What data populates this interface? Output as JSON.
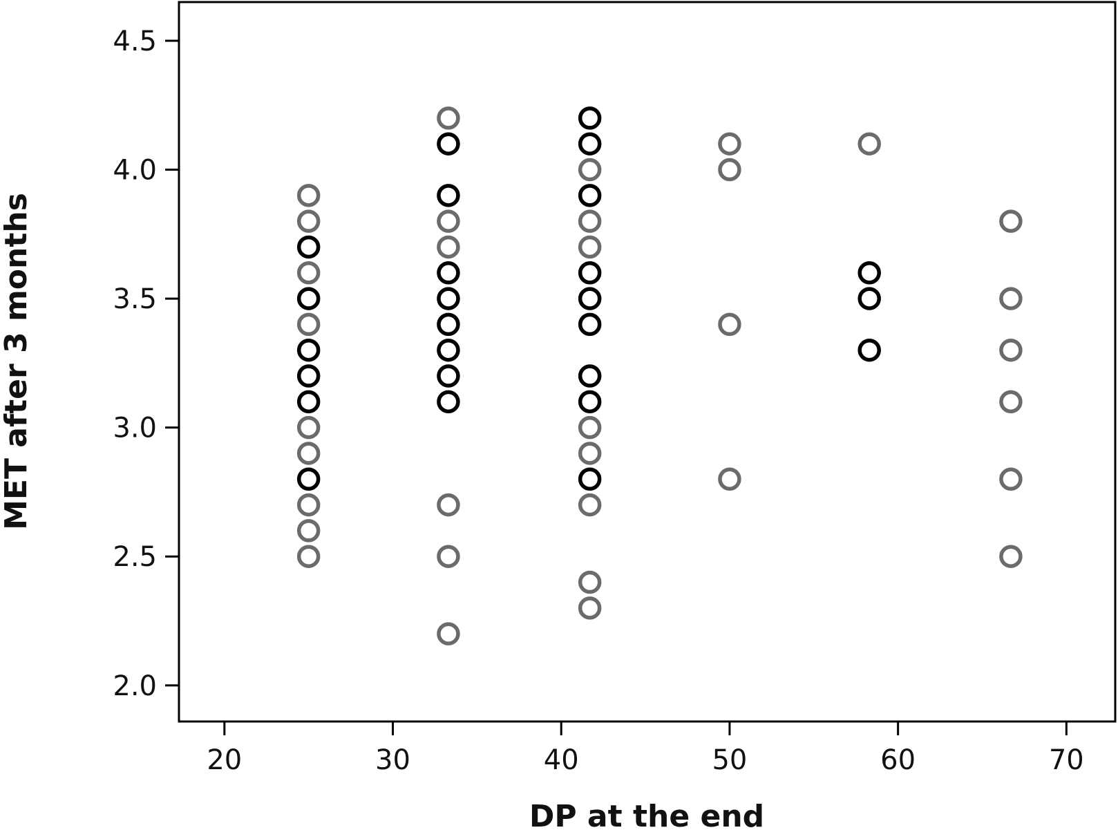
{
  "chart_data": {
    "type": "scatter",
    "xlabel": "DP at the end",
    "ylabel": "MET after 3 months",
    "xlim": [
      17.3,
      72.9
    ],
    "ylim": [
      1.86,
      4.65
    ],
    "x_ticks": [
      20,
      30,
      40,
      50,
      60,
      70
    ],
    "y_ticks": [
      2.0,
      2.5,
      3.0,
      3.5,
      4.0,
      4.5
    ],
    "x_tick_labels": [
      "20",
      "30",
      "40",
      "50",
      "60",
      "70"
    ],
    "y_tick_labels": [
      "2.0",
      "2.5",
      "3.0",
      "3.5",
      "4.0",
      "4.5"
    ],
    "grid": false,
    "legend": "none",
    "series": [
      {
        "color": "#6b6b6b",
        "points": [
          {
            "x": 25.0,
            "y": 3.9
          },
          {
            "x": 25.0,
            "y": 3.8
          },
          {
            "x": 25.0,
            "y": 3.6
          },
          {
            "x": 25.0,
            "y": 3.4
          },
          {
            "x": 25.0,
            "y": 3.0
          },
          {
            "x": 25.0,
            "y": 2.9
          },
          {
            "x": 25.0,
            "y": 2.7
          },
          {
            "x": 25.0,
            "y": 2.6
          },
          {
            "x": 25.0,
            "y": 2.5
          },
          {
            "x": 33.3,
            "y": 4.2
          },
          {
            "x": 33.3,
            "y": 3.8
          },
          {
            "x": 33.3,
            "y": 3.7
          },
          {
            "x": 33.3,
            "y": 2.7
          },
          {
            "x": 33.3,
            "y": 2.5
          },
          {
            "x": 33.3,
            "y": 2.2
          },
          {
            "x": 41.7,
            "y": 4.0
          },
          {
            "x": 41.7,
            "y": 3.8
          },
          {
            "x": 41.7,
            "y": 3.7
          },
          {
            "x": 41.7,
            "y": 3.0
          },
          {
            "x": 41.7,
            "y": 2.9
          },
          {
            "x": 41.7,
            "y": 2.7
          },
          {
            "x": 41.7,
            "y": 2.4
          },
          {
            "x": 41.7,
            "y": 2.3
          },
          {
            "x": 50.0,
            "y": 4.1
          },
          {
            "x": 50.0,
            "y": 4.0
          },
          {
            "x": 50.0,
            "y": 3.4
          },
          {
            "x": 50.0,
            "y": 2.8
          },
          {
            "x": 58.3,
            "y": 4.1
          },
          {
            "x": 66.7,
            "y": 3.8
          },
          {
            "x": 66.7,
            "y": 3.5
          },
          {
            "x": 66.7,
            "y": 3.3
          },
          {
            "x": 66.7,
            "y": 3.1
          },
          {
            "x": 66.7,
            "y": 2.8
          },
          {
            "x": 66.7,
            "y": 2.5
          }
        ]
      },
      {
        "color": "#000000",
        "points": [
          {
            "x": 25.0,
            "y": 3.7
          },
          {
            "x": 25.0,
            "y": 3.5
          },
          {
            "x": 25.0,
            "y": 3.3
          },
          {
            "x": 25.0,
            "y": 3.2
          },
          {
            "x": 25.0,
            "y": 3.1
          },
          {
            "x": 25.0,
            "y": 2.8
          },
          {
            "x": 33.3,
            "y": 4.1
          },
          {
            "x": 33.3,
            "y": 3.9
          },
          {
            "x": 33.3,
            "y": 3.6
          },
          {
            "x": 33.3,
            "y": 3.5
          },
          {
            "x": 33.3,
            "y": 3.4
          },
          {
            "x": 33.3,
            "y": 3.3
          },
          {
            "x": 33.3,
            "y": 3.2
          },
          {
            "x": 33.3,
            "y": 3.1
          },
          {
            "x": 41.7,
            "y": 4.2
          },
          {
            "x": 41.7,
            "y": 4.1
          },
          {
            "x": 41.7,
            "y": 3.9
          },
          {
            "x": 41.7,
            "y": 3.6
          },
          {
            "x": 41.7,
            "y": 3.5
          },
          {
            "x": 41.7,
            "y": 3.4
          },
          {
            "x": 41.7,
            "y": 3.2
          },
          {
            "x": 41.7,
            "y": 3.1
          },
          {
            "x": 41.7,
            "y": 2.8
          },
          {
            "x": 58.3,
            "y": 3.6
          },
          {
            "x": 58.3,
            "y": 3.5
          },
          {
            "x": 58.3,
            "y": 3.3
          }
        ]
      }
    ]
  }
}
